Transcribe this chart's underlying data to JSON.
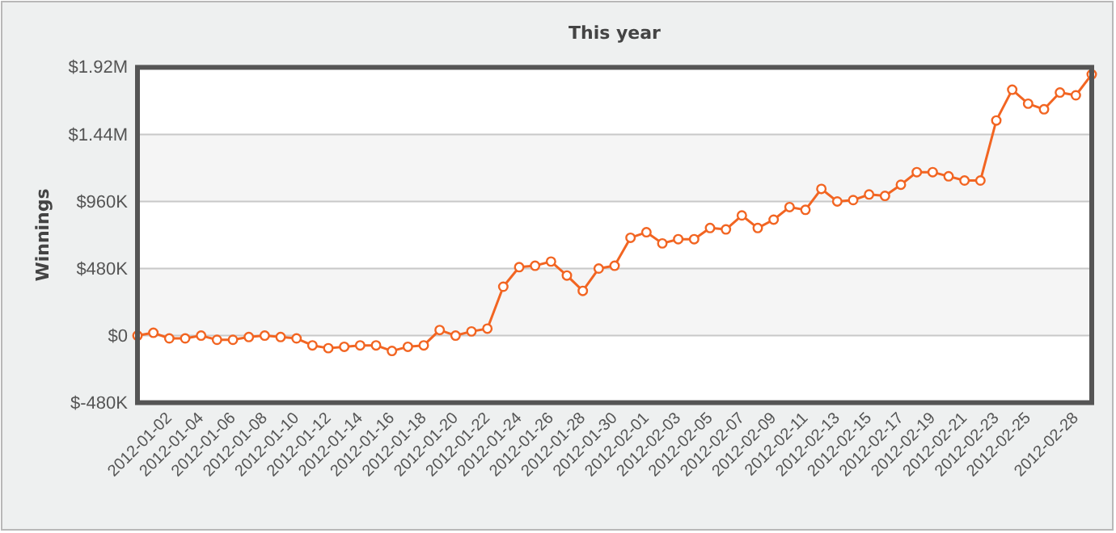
{
  "chart_data": {
    "type": "line",
    "title": "This year",
    "ylabel": "Winnings",
    "categories": [
      null,
      null,
      "2012-01-02",
      null,
      "2012-01-04",
      null,
      "2012-01-06",
      null,
      "2012-01-08",
      null,
      "2012-01-10",
      null,
      "2012-01-12",
      null,
      "2012-01-14",
      null,
      "2012-01-16",
      null,
      "2012-01-18",
      null,
      "2012-01-20",
      null,
      "2012-01-22",
      null,
      "2012-01-24",
      null,
      "2012-01-26",
      null,
      "2012-01-28",
      null,
      "2012-01-30",
      null,
      "2012-02-01",
      null,
      "2012-02-03",
      null,
      "2012-02-05",
      null,
      "2012-02-07",
      null,
      "2012-02-09",
      null,
      "2012-02-11",
      null,
      "2012-02-13",
      null,
      "2012-02-15",
      null,
      "2012-02-17",
      null,
      "2012-02-19",
      null,
      "2012-02-21",
      null,
      "2012-02-23",
      null,
      "2012-02-25",
      null,
      null,
      "2012-02-28",
      null
    ],
    "series": [
      {
        "color": "#f26522",
        "values": [
          0,
          20000,
          -20000,
          -20000,
          0,
          -30000,
          -30000,
          -10000,
          0,
          -10000,
          -20000,
          -70000,
          -90000,
          -80000,
          -70000,
          -70000,
          -110000,
          -80000,
          -70000,
          40000,
          0,
          30000,
          50000,
          350000,
          490000,
          500000,
          530000,
          430000,
          320000,
          480000,
          500000,
          700000,
          740000,
          660000,
          690000,
          690000,
          770000,
          760000,
          860000,
          770000,
          830000,
          920000,
          900000,
          1050000,
          960000,
          970000,
          1010000,
          1000000,
          1080000,
          1170000,
          1170000,
          1140000,
          1110000,
          1110000,
          1540000,
          1760000,
          1660000,
          1620000,
          1740000,
          1720000,
          1870000
        ]
      }
    ],
    "ylim": [
      -480000,
      1920000
    ],
    "yticks": [
      {
        "value": -480000,
        "label": "$-480K"
      },
      {
        "value": 0,
        "label": "$0"
      },
      {
        "value": 480000,
        "label": "$480K"
      },
      {
        "value": 960000,
        "label": "$960K"
      },
      {
        "value": 1440000,
        "label": "$1.44M"
      },
      {
        "value": 1920000,
        "label": "$1.92M"
      }
    ],
    "grid": "y",
    "marker": "circle"
  }
}
